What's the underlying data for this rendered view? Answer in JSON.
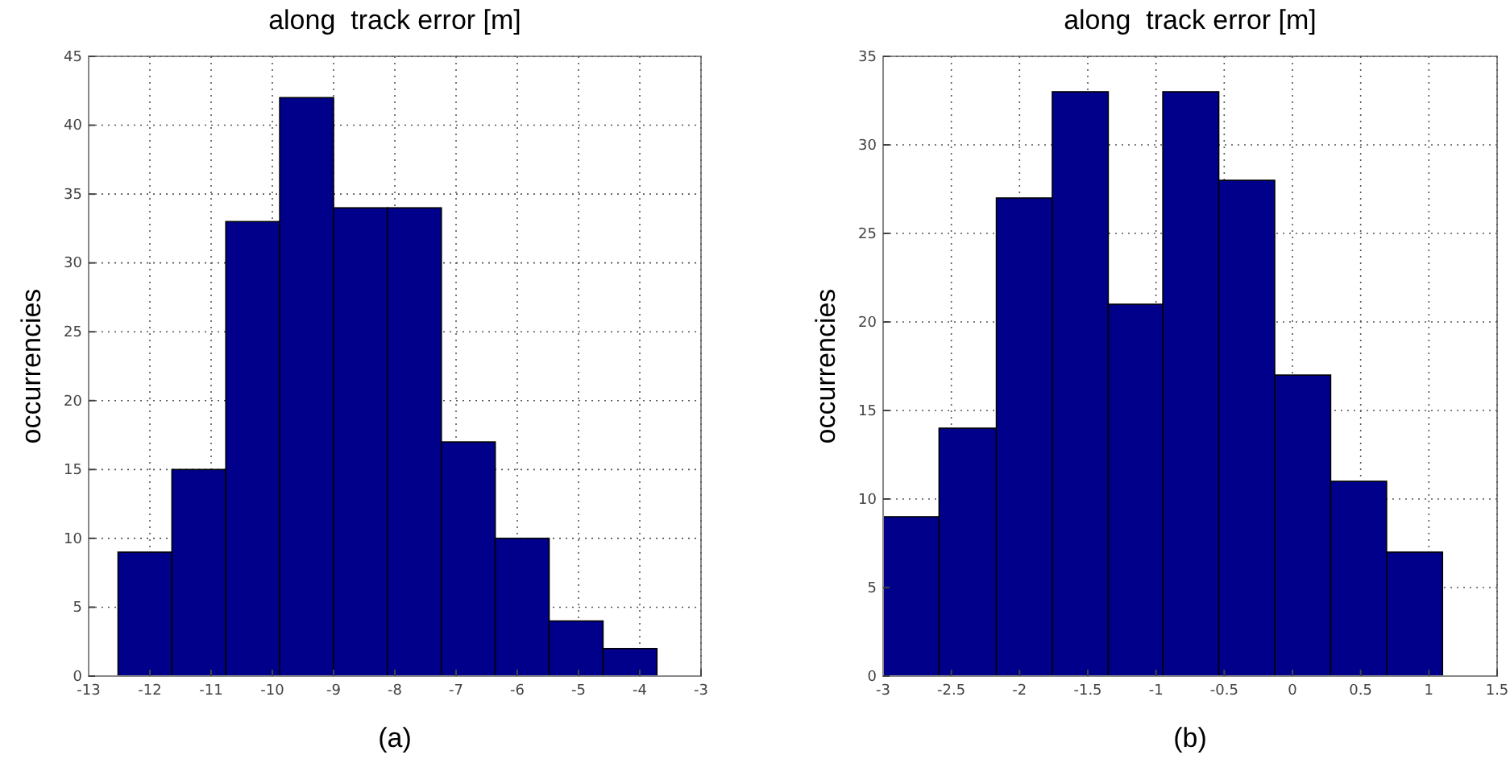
{
  "chart_data": [
    {
      "type": "histogram",
      "title": "along  track error [m]",
      "xlabel": "(a)",
      "ylabel": "occurrencies",
      "color": "#00008b",
      "bins": [
        -12.52,
        -11.64,
        -10.76,
        -9.88,
        -9.0,
        -8.12,
        -7.24,
        -6.36,
        -5.48,
        -4.6,
        -3.72
      ],
      "values": [
        9,
        15,
        33,
        42,
        34,
        34,
        17,
        10,
        4,
        2
      ],
      "xlim": [
        -13,
        -3
      ],
      "xticks": [
        -13,
        -12,
        -11,
        -10,
        -9,
        -8,
        -7,
        -6,
        -5,
        -4,
        -3
      ],
      "ylim": [
        0,
        45
      ],
      "yticks": [
        0,
        5,
        10,
        15,
        20,
        25,
        30,
        35,
        40,
        45
      ],
      "grid": true
    },
    {
      "type": "histogram",
      "title": "along  track error [m]",
      "xlabel": "(b)",
      "ylabel": "occurrencies",
      "color": "#00008b",
      "bins": [
        -3,
        -2.59,
        -2.17,
        -1.76,
        -1.35,
        -0.95,
        -0.54,
        -0.13,
        0.28,
        0.69,
        1.1
      ],
      "values": [
        9,
        14,
        27,
        33,
        21,
        33,
        28,
        17,
        11,
        7
      ],
      "xlim": [
        -3,
        1.5
      ],
      "xticks": [
        -3,
        -2.5,
        -2,
        -1.5,
        -1,
        -0.5,
        0,
        0.5,
        1,
        1.5
      ],
      "ylim": [
        0,
        35
      ],
      "yticks": [
        0,
        5,
        10,
        15,
        20,
        25,
        30,
        35
      ],
      "grid": true
    }
  ]
}
